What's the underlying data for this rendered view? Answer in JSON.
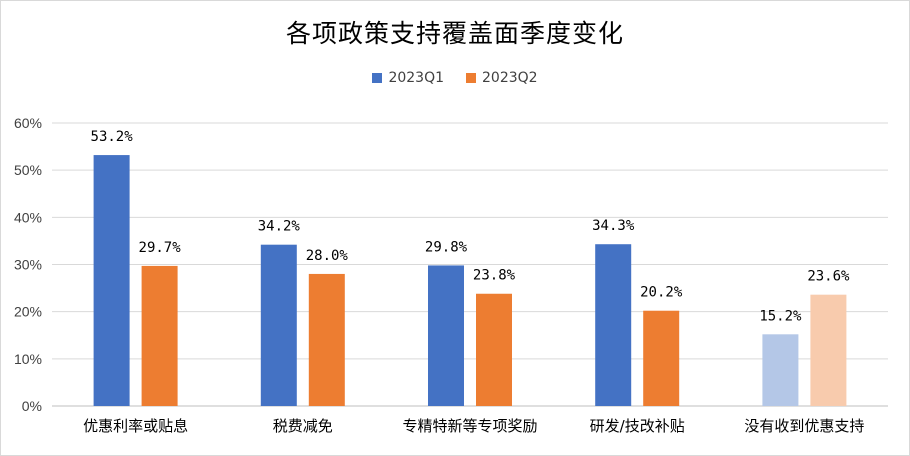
{
  "chart_data": {
    "type": "bar",
    "title": "各项政策支持覆盖面季度变化",
    "categories": [
      "优惠利率或贴息",
      "税费减免",
      "专精特新等专项奖励",
      "研发/技改补贴",
      "没有收到优惠支持"
    ],
    "series": [
      {
        "name": "2023Q1",
        "values": [
          53.2,
          34.2,
          29.8,
          34.3,
          15.2
        ],
        "labels": [
          "53.2%",
          "34.2%",
          "29.8%",
          "34.3%",
          "15.2%"
        ],
        "color": "#4472C4",
        "last_color": "#B4C7E7"
      },
      {
        "name": "2023Q2",
        "values": [
          29.7,
          28.0,
          23.8,
          20.2,
          23.6
        ],
        "labels": [
          "29.7%",
          "28.0%",
          "23.8%",
          "20.2%",
          "23.6%"
        ],
        "color": "#ED7D31",
        "last_color": "#F8CBAD"
      }
    ],
    "yticks": [
      "0%",
      "10%",
      "20%",
      "30%",
      "40%",
      "50%",
      "60%"
    ],
    "ylim": [
      0,
      60
    ],
    "grid": true,
    "legend": "top"
  }
}
